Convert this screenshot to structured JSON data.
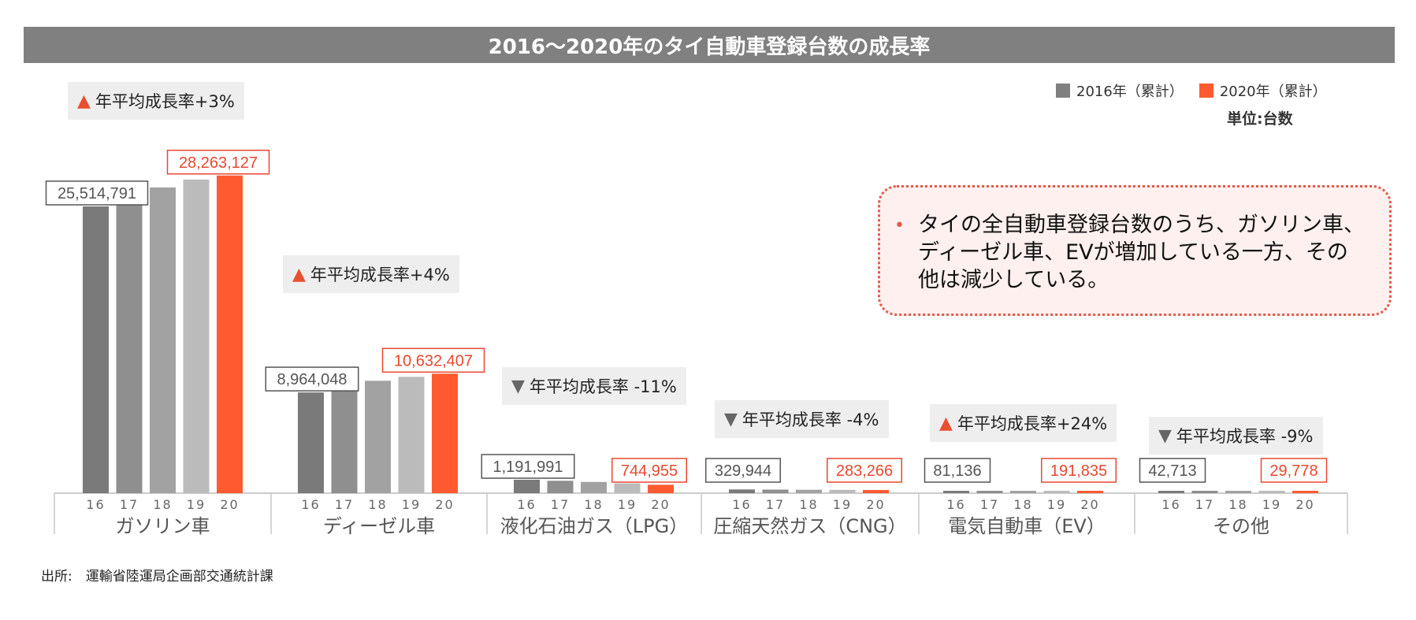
{
  "title": "2016〜2020年のタイ自動車登録台数の成長率",
  "legend": [
    {
      "label": "2016年（累計）",
      "color": "#808080"
    },
    {
      "label": "2020年（累計）",
      "color": "#ff5a30"
    }
  ],
  "unit_label": "単位:台数",
  "callout": {
    "bullet": "•",
    "text": "タイの全自動車登録台数のうち、ガソリン車、ディーゼル車、EVが増加している一方、その他は減少している。"
  },
  "source": "出所:　運輸省陸運局企画部交通統計課",
  "chart_data": {
    "type": "bar",
    "x_tick_labels": [
      "16",
      "17",
      "18",
      "19",
      "20"
    ],
    "groups": [
      {
        "category": "ガソリン車",
        "values": [
          25514791,
          26300000,
          27200000,
          27900000,
          28263127
        ],
        "label_2016": "25,514,791",
        "label_2020": "28,263,127",
        "growth_dir": "up",
        "growth_text": "年平均成長率+3%"
      },
      {
        "category": "ディーゼル車",
        "values": [
          8964048,
          9600000,
          10000000,
          10350000,
          10632407
        ],
        "label_2016": "8,964,048",
        "label_2020": "10,632,407",
        "growth_dir": "up",
        "growth_text": "年平均成長率+4%"
      },
      {
        "category": "液化石油ガス（LPG）",
        "values": [
          1191991,
          1100000,
          1000000,
          870000,
          744955
        ],
        "label_2016": "1,191,991",
        "label_2020": "744,955",
        "growth_dir": "down",
        "growth_text": "年平均成長率 -11%"
      },
      {
        "category": "圧縮天然ガス（CNG）",
        "values": [
          329944,
          318000,
          305000,
          292000,
          283266
        ],
        "label_2016": "329,944",
        "label_2020": "283,266",
        "growth_dir": "down",
        "growth_text": "年平均成長率 -4%"
      },
      {
        "category": "電気自動車（EV）",
        "values": [
          81136,
          100000,
          130000,
          160000,
          191835
        ],
        "label_2016": "81,136",
        "label_2020": "191,835",
        "growth_dir": "up",
        "growth_text": "年平均成長率+24%"
      },
      {
        "category": "その他",
        "values": [
          42713,
          38000,
          35000,
          32000,
          29778
        ],
        "label_2016": "42,713",
        "label_2020": "29,778",
        "growth_dir": "down",
        "growth_text": "年平均成長率 -9%"
      }
    ],
    "bar_colors": [
      "#7a7a7a",
      "#8f8f8f",
      "#a2a2a2",
      "#bbbbbb",
      "#ff5a30"
    ],
    "ylim": [
      0,
      30000000
    ]
  }
}
